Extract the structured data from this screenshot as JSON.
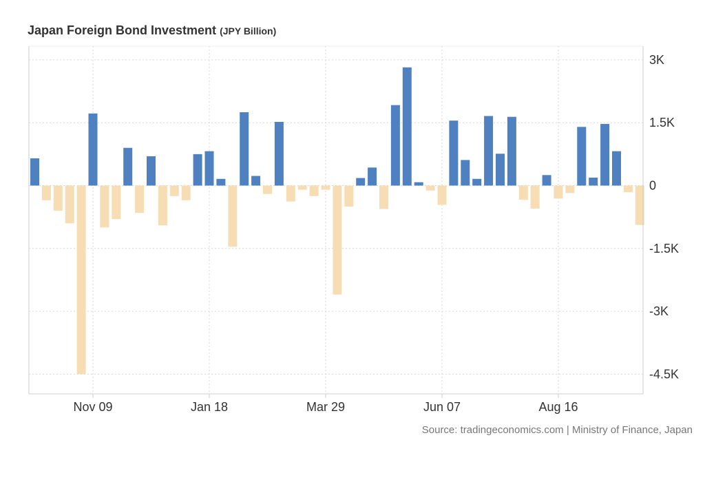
{
  "title": "Japan Foreign Bond Investment",
  "unit": "(JPY Billion)",
  "source": "Source: tradingeconomics.com | Ministry of Finance, Japan",
  "colors": {
    "positive": "#4f81c1",
    "negative": "#f7ddb3",
    "grid": "#d6d6d6",
    "axis": "#cccccc"
  },
  "chart_data": {
    "type": "bar",
    "title": "Japan Foreign Bond Investment (JPY Billion)",
    "xlabel": "",
    "ylabel": "",
    "ylim": [
      -5000,
      3000
    ],
    "y_ticks": [
      3000,
      1500,
      0,
      -1500,
      -3000,
      -4500
    ],
    "y_tick_labels": [
      "3K",
      "1.5K",
      "0",
      "-1.5K",
      "-3K",
      "-4.5K"
    ],
    "x_tick_labels": [
      "Nov 09",
      "Jan 18",
      "Mar 29",
      "Jun 07",
      "Aug 16"
    ],
    "x_tick_bar_index": [
      5,
      15,
      25,
      35,
      45
    ],
    "grid": true,
    "values": [
      650,
      -350,
      -600,
      -900,
      -4500,
      1720,
      -1000,
      -800,
      900,
      -650,
      700,
      -950,
      -250,
      -350,
      750,
      820,
      160,
      -1460,
      1750,
      230,
      -200,
      1520,
      -380,
      -100,
      -250,
      -100,
      -2600,
      -500,
      180,
      430,
      -560,
      1920,
      2820,
      80,
      -120,
      -460,
      1550,
      610,
      160,
      1660,
      760,
      1640,
      -340,
      -550,
      250,
      -310,
      -180,
      1400,
      190,
      1470,
      820,
      -160,
      -940
    ]
  }
}
